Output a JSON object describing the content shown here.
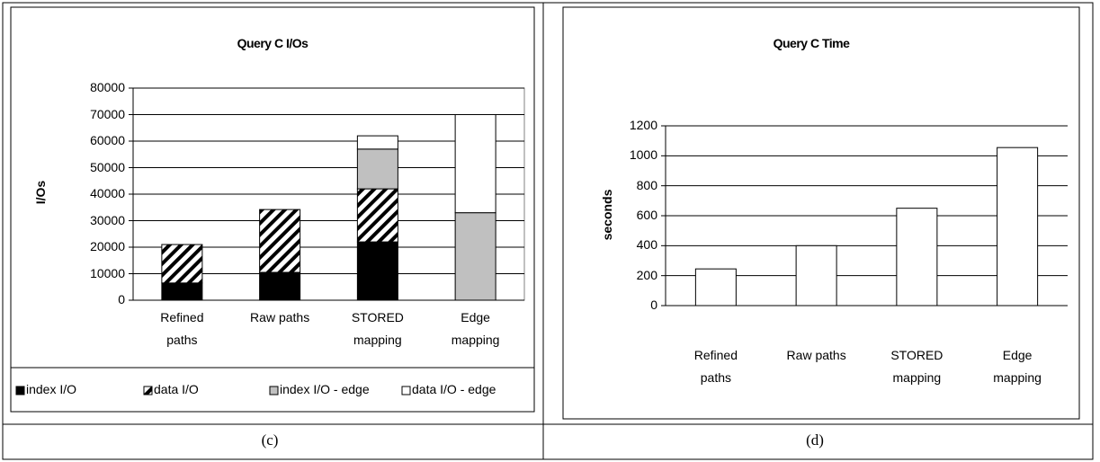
{
  "chart_data": [
    {
      "type": "stacked_bar",
      "title": "Query C I/Os",
      "y_label": "I/Os",
      "categories": [
        "Refined paths",
        "Raw paths",
        "STORED mapping",
        "Edge mapping"
      ],
      "series": [
        {
          "name": "index I/O",
          "color": "#000000",
          "values": [
            6500,
            10500,
            22000,
            null
          ]
        },
        {
          "name": "data I/O",
          "color": "#000000",
          "pattern": "diagonal",
          "values": [
            14500,
            23700,
            20000,
            null
          ]
        },
        {
          "name": "index I/O - edge",
          "color": "#c0c0c0",
          "values": [
            null,
            null,
            15000,
            33000
          ]
        },
        {
          "name": "data I/O - edge",
          "color": "#ffffff",
          "values": [
            null,
            null,
            5000,
            37000
          ]
        }
      ],
      "ylim": [
        0,
        80000
      ],
      "yticks": [
        0,
        10000,
        20000,
        30000,
        40000,
        50000,
        60000,
        70000,
        80000
      ],
      "grid": true,
      "legend": "bottom",
      "caption": "(c)"
    },
    {
      "type": "bar",
      "title": "Query C Time",
      "y_label": "seconds",
      "categories": [
        "Refined paths",
        "Raw paths",
        "STORED mapping",
        "Edge mapping"
      ],
      "values": [
        245,
        400,
        650,
        1055
      ],
      "color": "#ffffff",
      "ylim": [
        0,
        1200
      ],
      "yticks": [
        0,
        200,
        400,
        600,
        800,
        1000,
        1200
      ],
      "grid": true,
      "caption": "(d)"
    }
  ]
}
